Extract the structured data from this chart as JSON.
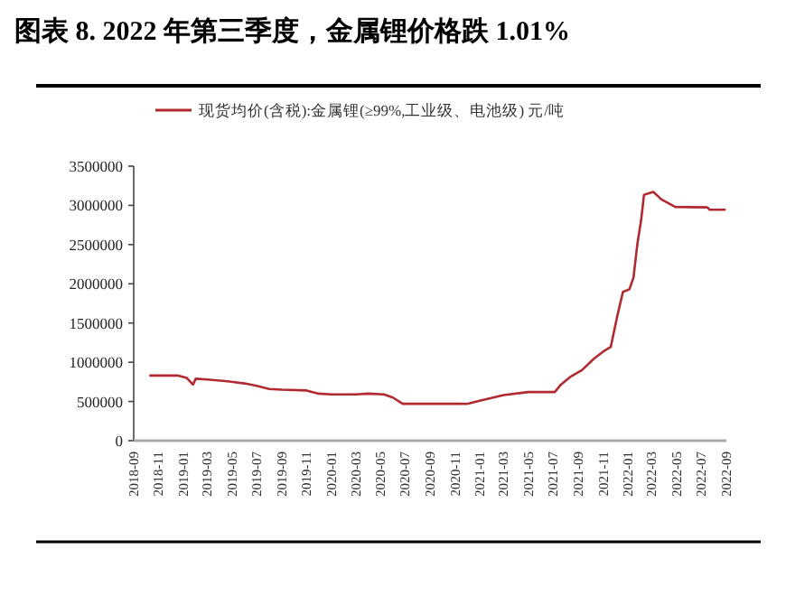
{
  "chart_data": {
    "type": "line",
    "title": "图表 8.   2022 年第三季度，金属锂价格跌 1.01%",
    "x": [
      "2018-10-12",
      "2018-12-20",
      "2019-01-10",
      "2019-01-25",
      "2019-02-01",
      "2019-03-01",
      "2019-04-15",
      "2019-06-01",
      "2019-07-01",
      "2019-08-01",
      "2019-09-01",
      "2019-11-01",
      "2019-12-01",
      "2020-01-01",
      "2020-03-01",
      "2020-04-01",
      "2020-05-10",
      "2020-06-01",
      "2020-06-25",
      "2020-12-01",
      "2021-01-01",
      "2021-03-01",
      "2021-05-01",
      "2021-07-05",
      "2021-07-20",
      "2021-08-12",
      "2021-09-10",
      "2021-10-10",
      "2021-11-01",
      "2021-11-20",
      "2021-12-05",
      "2021-12-20",
      "2022-01-05",
      "2022-01-15",
      "2022-01-25",
      "2022-02-03",
      "2022-02-10",
      "2022-03-05",
      "2022-03-25",
      "2022-04-28",
      "2022-07-16",
      "2022-07-22",
      "2022-08-28"
    ],
    "series": [
      {
        "name": "现货均价(含税):金属锂(≥99%,工业级、电池级) 元/吨",
        "color": "#b02a30",
        "values": [
          830000,
          830000,
          800000,
          715000,
          790000,
          780000,
          760000,
          730000,
          700000,
          660000,
          650000,
          640000,
          600000,
          590000,
          590000,
          600000,
          590000,
          550000,
          471000,
          470000,
          509000,
          582000,
          620000,
          620000,
          715000,
          812000,
          900000,
          1047000,
          1135000,
          1195000,
          1564000,
          1896000,
          1930000,
          2080000,
          2522000,
          2817000,
          3135000,
          3171000,
          3075000,
          2980000,
          2975000,
          2945000,
          2945000
        ]
      }
    ],
    "xlim": [
      "2018-09",
      "2022-09"
    ],
    "xticks": [
      "2018-09",
      "2018-11",
      "2019-01",
      "2019-03",
      "2019-05",
      "2019-07",
      "2019-09",
      "2019-11",
      "2020-01",
      "2020-03",
      "2020-05",
      "2020-07",
      "2020-09",
      "2020-11",
      "2021-01",
      "2021-03",
      "2021-05",
      "2021-07",
      "2021-09",
      "2021-11",
      "2022-01",
      "2022-03",
      "2022-05",
      "2022-07",
      "2022-09"
    ],
    "ylim": [
      0,
      3500000
    ],
    "yticks": [
      0,
      500000,
      1000000,
      1500000,
      2000000,
      2500000,
      3000000,
      3500000
    ],
    "legend": "top",
    "grid": false,
    "marker": "none",
    "line_style": "solid"
  }
}
